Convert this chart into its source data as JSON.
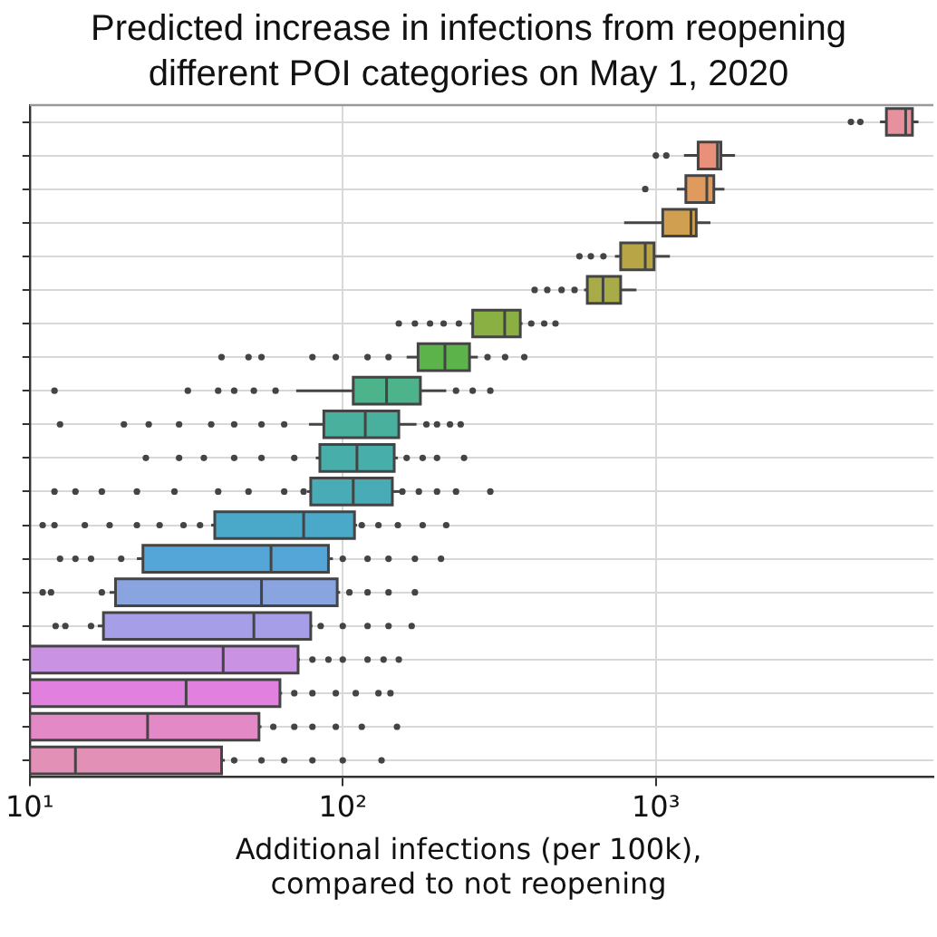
{
  "chart_data": {
    "type": "box",
    "title": "Predicted increase in infections from reopening different POI categories on May 1, 2020",
    "xlabel": "Additional infections (per 100k), compared to not reopening",
    "orientation": "horizontal",
    "log": "x",
    "grid": true,
    "tick_labels": "x",
    "xlim": [
      10,
      7700
    ],
    "xticks": [
      {
        "value": 10,
        "label": "10¹"
      },
      {
        "value": 100,
        "label": "10²"
      },
      {
        "value": 1000,
        "label": "10³"
      }
    ],
    "categories": [
      null,
      null,
      null,
      null,
      null,
      null,
      null,
      null,
      null,
      null,
      null,
      null,
      null,
      null,
      null,
      null,
      null,
      null,
      null,
      null
    ],
    "colors": [
      "#e8919e",
      "#e8907a",
      "#e09a5e",
      "#d0a050",
      "#b8a646",
      "#a8ac48",
      "#8ab043",
      "#5cb34a",
      "#4db38a",
      "#49b09d",
      "#47aeaa",
      "#48abb6",
      "#4aa9c8",
      "#55a6d8",
      "#8aa4e0",
      "#a69ee6",
      "#c992e2",
      "#e280e0",
      "#e38ac6",
      "#e390b6"
    ],
    "boxes": [
      {
        "low": 5200,
        "q1": 5450,
        "median": 6280,
        "q3": 6600,
        "high": 6900,
        "outliers": [
          4200,
          4500
        ]
      },
      {
        "low": 1230,
        "q1": 1365,
        "median": 1573,
        "q3": 1614,
        "high": 1790,
        "outliers": [
          1000,
          1080
        ]
      },
      {
        "low": 1167,
        "q1": 1247,
        "median": 1455,
        "q3": 1532,
        "high": 1656,
        "outliers": [
          925
        ]
      },
      {
        "low": 792,
        "q1": 1052,
        "median": 1295,
        "q3": 1346,
        "high": 1494
      },
      {
        "low": 740,
        "q1": 772,
        "median": 925,
        "q3": 987,
        "high": 1109,
        "outliers": [
          570,
          620,
          680
        ]
      },
      {
        "low": 590,
        "q1": 604,
        "median": 678,
        "q3": 772,
        "high": 867,
        "outliers": [
          410,
          450,
          500,
          550
        ]
      },
      {
        "low": 255,
        "q1": 260,
        "median": 329,
        "q3": 369,
        "high": 375,
        "outliers": [
          151,
          170,
          190,
          210,
          235,
          400,
          440,
          478
        ]
      },
      {
        "low": 160,
        "q1": 174,
        "median": 212,
        "q3": 254,
        "high": 270,
        "outliers": [
          41,
          50,
          55,
          80,
          95,
          120,
          140,
          290,
          330,
          380
        ]
      },
      {
        "low": 71,
        "q1": 108,
        "median": 138,
        "q3": 177,
        "high": 214,
        "outliers": [
          12,
          32,
          40,
          45,
          52,
          61,
          230,
          260,
          296
        ]
      },
      {
        "low": 78,
        "q1": 87,
        "median": 118,
        "q3": 151,
        "high": 172,
        "outliers": [
          12.5,
          20,
          24,
          30,
          38,
          45,
          55,
          65,
          185,
          200,
          220,
          238
        ]
      },
      {
        "low": 82,
        "q1": 84.5,
        "median": 111,
        "q3": 146,
        "high": 150,
        "outliers": [
          23.5,
          30,
          36,
          45,
          55,
          70,
          160,
          180,
          200,
          244
        ]
      },
      {
        "low": 77,
        "q1": 79,
        "median": 108,
        "q3": 144,
        "high": 152,
        "outliers": [
          12,
          14,
          17,
          22,
          29,
          40,
          50,
          65,
          75,
          155,
          175,
          200,
          230,
          296
        ]
      },
      {
        "low": 38,
        "q1": 39,
        "median": 75,
        "q3": 109,
        "high": 111,
        "outliers": [
          11,
          12,
          15,
          18,
          22,
          26,
          31,
          35,
          115,
          130,
          150,
          180,
          214
        ]
      },
      {
        "low": 22,
        "q1": 23,
        "median": 59,
        "q3": 90,
        "high": 93,
        "outliers": [
          12.5,
          14,
          15.7,
          19.6,
          100,
          120,
          140,
          170,
          206
        ]
      },
      {
        "low": 18,
        "q1": 18.8,
        "median": 55,
        "q3": 96,
        "high": 98,
        "outliers": [
          11,
          11.7,
          17,
          105,
          120,
          140,
          170
        ]
      },
      {
        "low": 16.5,
        "q1": 17.2,
        "median": 52,
        "q3": 79,
        "high": 80,
        "outliers": [
          12.1,
          13,
          15.7,
          85,
          100,
          120,
          140,
          166
        ]
      },
      {
        "low": 10,
        "q1": 10,
        "median": 41.5,
        "q3": 72,
        "high": 73,
        "outliers": [
          80,
          90,
          100,
          120,
          135,
          151
        ]
      },
      {
        "low": 10,
        "q1": 10,
        "median": 31.6,
        "q3": 63,
        "high": 64,
        "outliers": [
          70,
          80,
          95,
          110,
          130,
          142
        ]
      },
      {
        "low": 10,
        "q1": 10,
        "median": 23.8,
        "q3": 54,
        "high": 55,
        "outliers": [
          60,
          70,
          80,
          95,
          115,
          149
        ]
      },
      {
        "low": 10,
        "q1": 10,
        "median": 14,
        "q3": 41,
        "high": 42,
        "outliers": [
          45,
          55,
          65,
          80,
          100,
          133
        ]
      }
    ]
  }
}
